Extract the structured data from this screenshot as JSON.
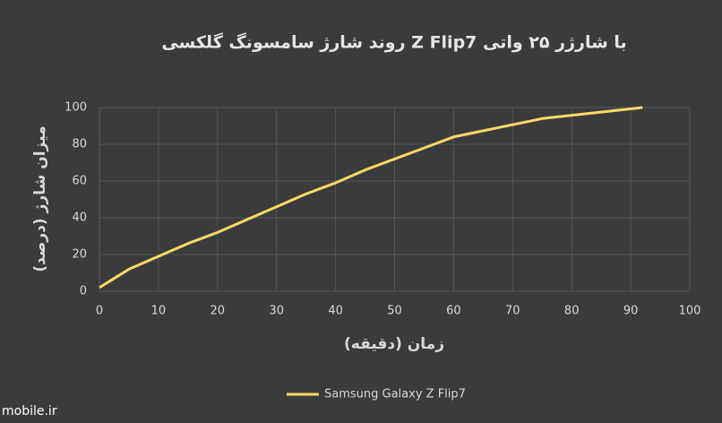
{
  "chart_data": {
    "type": "line",
    "title": "روند شارژ سامسونگ گلکسی Z Flip7 با شارژر ۲۵ واتی",
    "x_label": "زمان (دقیقه)",
    "y_label": "میزان شارژ (درصد)",
    "x": [
      0,
      5,
      10,
      15,
      20,
      25,
      30,
      35,
      40,
      45,
      50,
      55,
      60,
      75,
      92
    ],
    "series": [
      {
        "name": "Samsung Galaxy Z Flip7",
        "color": "#ffd966",
        "values": [
          2,
          12,
          19,
          26,
          32,
          39,
          46,
          53,
          59,
          66,
          72,
          78,
          84,
          94,
          100
        ]
      }
    ],
    "xlim": [
      0,
      100
    ],
    "xticks": [
      0,
      10,
      20,
      30,
      40,
      50,
      60,
      70,
      80,
      90,
      100
    ],
    "ylim": [
      0,
      100
    ],
    "yticks": [
      0,
      20,
      40,
      60,
      80,
      100
    ],
    "grid": true,
    "legend": "bottom",
    "watermark": "mobile.ir"
  }
}
